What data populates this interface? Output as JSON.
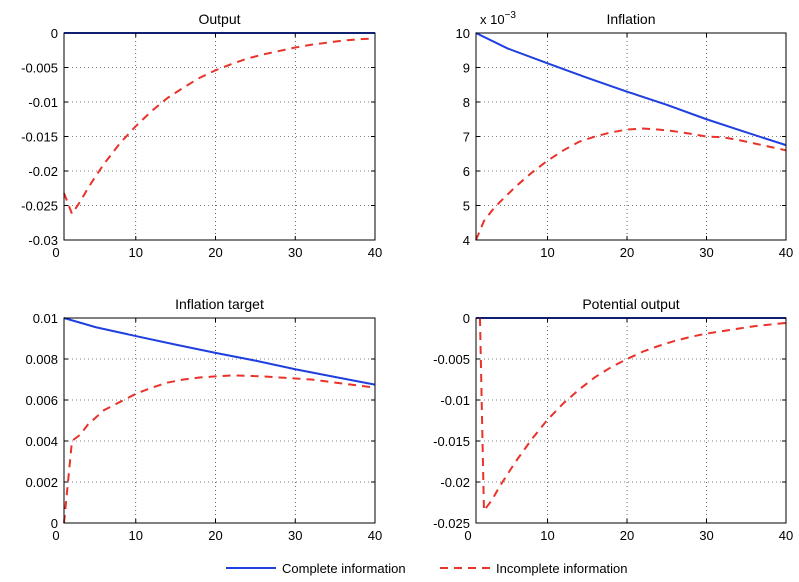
{
  "colors": {
    "complete": "#1f3fe0",
    "incomplete": "#e8322a"
  },
  "legend": {
    "complete_label": "Complete information",
    "incomplete_label": "Incomplete information"
  },
  "chart_data": [
    {
      "type": "line",
      "title": "Output",
      "xlim": [
        1,
        40
      ],
      "ylim": [
        -0.03,
        0
      ],
      "grid": true,
      "x_ticks": [
        0,
        10,
        20,
        30,
        40
      ],
      "x_tick_labels": [
        "0",
        "10",
        "20",
        "30",
        "40"
      ],
      "y_ticks": [
        -0.03,
        -0.025,
        -0.02,
        -0.015,
        -0.01,
        -0.005,
        0
      ],
      "y_tick_labels": [
        "-0.03",
        "-0.025",
        "-0.02",
        "-0.015",
        "-0.01",
        "-0.005",
        "0"
      ],
      "exponent_label": "",
      "series": [
        {
          "name": "Complete information",
          "x": [
            1,
            40
          ],
          "values": [
            0,
            0
          ]
        },
        {
          "name": "Incomplete information",
          "x": [
            1,
            2,
            3,
            4,
            5,
            6,
            8,
            10,
            12,
            14,
            16,
            18,
            20,
            22,
            24,
            26,
            28,
            30,
            32,
            34,
            36,
            38,
            40
          ],
          "values": [
            -0.0232,
            -0.0262,
            -0.0245,
            -0.0225,
            -0.0207,
            -0.019,
            -0.016,
            -0.0135,
            -0.0113,
            -0.0094,
            -0.0079,
            -0.0065,
            -0.0054,
            -0.0045,
            -0.0037,
            -0.0031,
            -0.0026,
            -0.0021,
            -0.0017,
            -0.0014,
            -0.0011,
            -0.0009,
            -0.0008
          ]
        }
      ]
    },
    {
      "type": "line",
      "title": "Inflation",
      "xlim": [
        1,
        40
      ],
      "ylim": [
        4,
        10
      ],
      "grid": true,
      "x_ticks": [
        10,
        20,
        30,
        40
      ],
      "x_tick_labels": [
        "10",
        "20",
        "30",
        "40"
      ],
      "y_ticks": [
        4,
        5,
        6,
        7,
        8,
        9,
        10
      ],
      "y_tick_labels": [
        "4",
        "5",
        "6",
        "7",
        "8",
        "9",
        "10"
      ],
      "exponent_label": "x 10",
      "exponent_power": "−3",
      "series": [
        {
          "name": "Complete information",
          "x": [
            1,
            5,
            10,
            15,
            20,
            25,
            30,
            35,
            40
          ],
          "values": [
            10,
            9.55,
            9.12,
            8.7,
            8.3,
            7.92,
            7.5,
            7.12,
            6.75
          ]
        },
        {
          "name": "Incomplete information",
          "x": [
            1,
            2,
            3,
            4,
            6,
            8,
            10,
            12,
            14,
            16,
            18,
            20,
            22,
            24,
            26,
            28,
            30,
            32,
            34,
            36,
            38,
            40
          ],
          "values": [
            4.0,
            4.55,
            4.85,
            5.1,
            5.55,
            5.95,
            6.3,
            6.6,
            6.85,
            7.0,
            7.12,
            7.2,
            7.23,
            7.2,
            7.15,
            7.08,
            7.0,
            6.98,
            6.9,
            6.8,
            6.7,
            6.6
          ]
        }
      ]
    },
    {
      "type": "line",
      "title": "Inflation target",
      "xlim": [
        1,
        40
      ],
      "ylim": [
        0,
        0.01
      ],
      "grid": true,
      "x_ticks": [
        0,
        10,
        20,
        30,
        40
      ],
      "x_tick_labels": [
        "0",
        "10",
        "20",
        "30",
        "40"
      ],
      "y_ticks": [
        0,
        0.002,
        0.004,
        0.006,
        0.008,
        0.01
      ],
      "y_tick_labels": [
        "0",
        "0.002",
        "0.004",
        "0.006",
        "0.008",
        "0.01"
      ],
      "exponent_label": "",
      "series": [
        {
          "name": "Complete information",
          "x": [
            1,
            5,
            10,
            15,
            20,
            25,
            30,
            35,
            40
          ],
          "values": [
            0.01,
            0.00955,
            0.00912,
            0.0087,
            0.0083,
            0.00792,
            0.0075,
            0.00712,
            0.00675
          ]
        },
        {
          "name": "Incomplete information",
          "x": [
            1,
            2,
            3,
            4,
            6,
            8,
            10,
            12,
            14,
            16,
            18,
            20,
            22,
            24,
            26,
            28,
            30,
            32,
            34,
            36,
            38,
            40
          ],
          "values": [
            0.0,
            0.004,
            0.0043,
            0.0048,
            0.0055,
            0.0059,
            0.0063,
            0.0066,
            0.00685,
            0.007,
            0.0071,
            0.00715,
            0.0072,
            0.00718,
            0.00715,
            0.0071,
            0.00705,
            0.007,
            0.0069,
            0.0068,
            0.0067,
            0.0066
          ]
        }
      ]
    },
    {
      "type": "line",
      "title": "Potential output",
      "xlim": [
        1,
        40
      ],
      "ylim": [
        -0.025,
        0
      ],
      "grid": true,
      "x_ticks": [
        0,
        10,
        20,
        30,
        40
      ],
      "x_tick_labels": [
        "0",
        "10",
        "20",
        "30",
        "40"
      ],
      "y_ticks": [
        -0.025,
        -0.02,
        -0.015,
        -0.01,
        -0.005,
        0
      ],
      "y_tick_labels": [
        "-0.025",
        "-0.02",
        "-0.015",
        "-0.01",
        "-0.005",
        "0"
      ],
      "exponent_label": "",
      "series": [
        {
          "name": "Complete information",
          "x": [
            1,
            40
          ],
          "values": [
            0,
            0
          ]
        },
        {
          "name": "Incomplete information",
          "x": [
            1.5,
            2,
            3,
            4,
            5,
            6,
            8,
            10,
            12,
            14,
            16,
            18,
            20,
            22,
            24,
            26,
            28,
            30,
            32,
            34,
            36,
            38,
            40
          ],
          "values": [
            0.0,
            -0.0235,
            -0.0222,
            -0.0205,
            -0.019,
            -0.0175,
            -0.0148,
            -0.0124,
            -0.0104,
            -0.0087,
            -0.0072,
            -0.006,
            -0.005,
            -0.0041,
            -0.0034,
            -0.0028,
            -0.0023,
            -0.0019,
            -0.0016,
            -0.0013,
            -0.001,
            -0.0008,
            -0.0006
          ]
        }
      ]
    }
  ]
}
